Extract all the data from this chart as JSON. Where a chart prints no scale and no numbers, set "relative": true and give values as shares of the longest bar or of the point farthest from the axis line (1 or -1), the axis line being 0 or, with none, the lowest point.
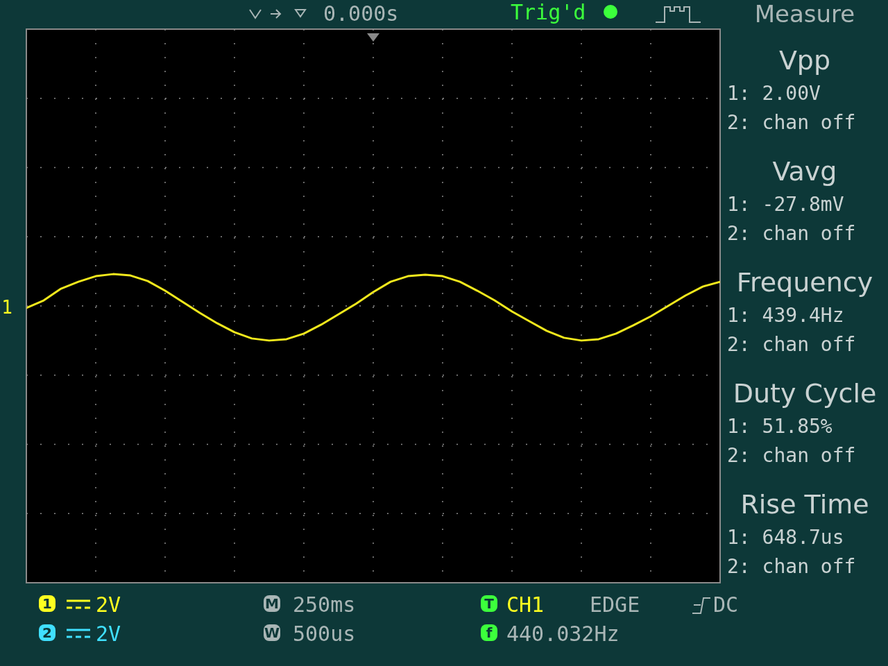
{
  "chart_data": {
    "type": "line",
    "relative": true,
    "grid": true,
    "line_style": "solid",
    "categories": [
      null,
      null,
      null,
      null,
      null,
      null,
      null,
      null,
      null,
      null,
      null,
      null,
      null,
      null,
      null,
      null,
      null,
      null,
      null,
      null,
      null,
      null,
      null,
      null,
      null,
      null,
      null,
      null,
      null,
      null,
      null,
      null,
      null,
      null,
      null,
      null,
      null,
      null,
      null,
      null,
      null
    ],
    "series": [
      {
        "color": "#f2e81c",
        "values": [
          -0.06,
          0.16,
          0.5,
          0.7,
          0.86,
          0.92,
          0.88,
          0.72,
          0.44,
          0.12,
          -0.2,
          -0.5,
          -0.76,
          -0.94,
          -1,
          -0.96,
          -0.8,
          -0.54,
          -0.24,
          0.06,
          0.4,
          0.7,
          0.86,
          0.9,
          0.86,
          0.7,
          0.44,
          0.16,
          -0.16,
          -0.44,
          -0.72,
          -0.92,
          -1,
          -0.96,
          -0.8,
          -0.56,
          -0.3,
          0,
          0.3,
          0.56,
          0.7
        ]
      }
    ],
    "annotations": [
      "0.000s",
      "Trig'd",
      "Measure",
      "Vpp",
      "1: 2.00V",
      "2: chan off",
      "Vavg",
      "1: -27.8mV",
      "2: chan off",
      "Frequency",
      "1: 439.4Hz",
      "2: chan off",
      "Duty Cycle",
      "1: 51.85%",
      "2: chan off",
      "Rise Time",
      "1: 648.7us",
      "2: chan off",
      "1",
      "2V",
      "2",
      "2V",
      "M",
      "250ms",
      "W",
      "500us",
      "T",
      "CH1",
      "EDGE",
      "DC",
      "f",
      "440.032Hz",
      "1"
    ]
  }
}
